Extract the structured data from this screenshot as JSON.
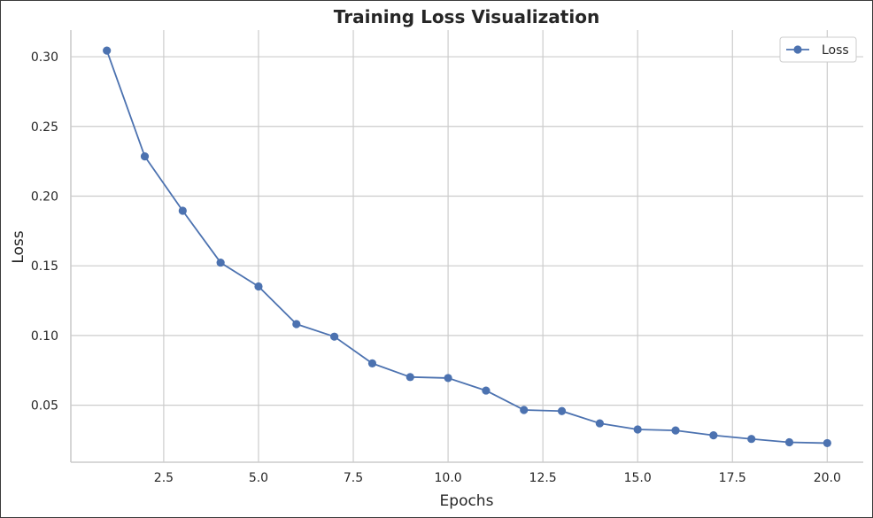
{
  "chart_data": {
    "type": "line",
    "title": "Training Loss Visualization",
    "xlabel": "Epochs",
    "ylabel": "Loss",
    "xlim": [
      0.05,
      20.95
    ],
    "ylim": [
      0.0091,
      0.3191
    ],
    "xticks": [
      2.5,
      5.0,
      7.5,
      10.0,
      12.5,
      15.0,
      17.5,
      20.0
    ],
    "xtick_labels": [
      "2.5",
      "5.0",
      "7.5",
      "10.0",
      "12.5",
      "15.0",
      "17.5",
      "20.0"
    ],
    "yticks": [
      0.05,
      0.1,
      0.15,
      0.2,
      0.25,
      0.3
    ],
    "ytick_labels": [
      "0.05",
      "0.10",
      "0.15",
      "0.20",
      "0.25",
      "0.30"
    ],
    "grid": true,
    "legend_position": "top-right",
    "series": [
      {
        "name": "Loss",
        "color": "#4c72b0",
        "marker": "circle",
        "x": [
          1,
          2,
          3,
          4,
          5,
          6,
          7,
          8,
          9,
          10,
          11,
          12,
          13,
          14,
          15,
          16,
          17,
          18,
          19,
          20
        ],
        "y": [
          0.3044,
          0.2285,
          0.1895,
          0.1523,
          0.1352,
          0.1082,
          0.0992,
          0.08,
          0.0702,
          0.0695,
          0.0605,
          0.0466,
          0.0458,
          0.037,
          0.0326,
          0.0319,
          0.0284,
          0.0258,
          0.0234,
          0.0228
        ]
      }
    ]
  }
}
